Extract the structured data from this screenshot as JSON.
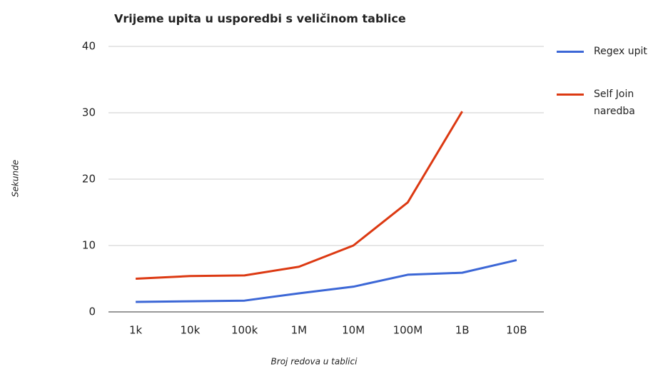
{
  "chart_data": {
    "type": "line",
    "title": "Vrijeme upita u usporedbi s veličinom tablice",
    "x_label": "Broj redova u tablici",
    "y_label": "Sekunde",
    "categories": [
      "1k",
      "10k",
      "100k",
      "1M",
      "10M",
      "100M",
      "1B",
      "10B"
    ],
    "series": [
      {
        "name": "Regex upit",
        "color": "#3c67d6",
        "values": [
          1.5,
          1.6,
          1.7,
          2.8,
          3.8,
          5.6,
          5.9,
          7.8
        ]
      },
      {
        "name": "Self Join naredba",
        "color": "#dc3912",
        "values": [
          5.0,
          5.4,
          5.5,
          6.8,
          10,
          16.5,
          30.2,
          null
        ]
      }
    ],
    "ylim": [
      0,
      40
    ],
    "yticks": [
      0,
      10,
      20,
      30,
      40
    ],
    "grid": true,
    "legend": "right"
  }
}
